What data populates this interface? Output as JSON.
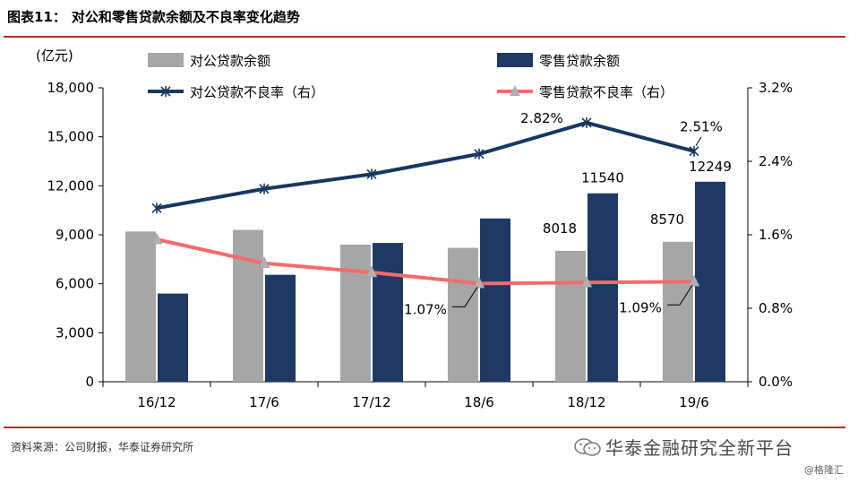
{
  "figure": {
    "label": "图表11：",
    "title": "对公和零售贷款余额及不良率变化趋势",
    "source": "资料来源：公司财报，华泰证券研究所",
    "brand": "华泰金融研究全新平台",
    "watermark": "@格隆汇"
  },
  "chart_data": {
    "type": "bar",
    "categories": [
      "16/12",
      "17/6",
      "17/12",
      "18/6",
      "18/12",
      "19/6"
    ],
    "left_axis": {
      "unit_label": "(亿元)",
      "min": 0,
      "max": 18000,
      "ticks": [
        "0",
        "3,000",
        "6,000",
        "9,000",
        "12,000",
        "15,000",
        "18,000"
      ]
    },
    "right_axis": {
      "min": 0,
      "max": 3.2,
      "ticks": [
        "0.0%",
        "0.8%",
        "1.6%",
        "2.4%",
        "3.2%"
      ]
    },
    "series": [
      {
        "name": "对公贷款余额",
        "type": "bar",
        "axis": "left",
        "color": "#a6a6a6",
        "values": [
          9200,
          9300,
          8400,
          8200,
          8018,
          8570
        ]
      },
      {
        "name": "零售贷款余额",
        "type": "bar",
        "axis": "left",
        "color": "#1f3864",
        "values": [
          5400,
          6550,
          8500,
          10000,
          11540,
          12249
        ]
      },
      {
        "name": "对公贷款不良率（右）",
        "type": "line",
        "axis": "right",
        "color": "#17375e",
        "marker": "star",
        "values": [
          1.89,
          2.1,
          2.26,
          2.48,
          2.82,
          2.51
        ]
      },
      {
        "name": "零售贷款不良率（右）",
        "type": "line",
        "axis": "right",
        "color": "#f36b6b",
        "marker": "triangle",
        "values": [
          1.55,
          1.29,
          1.19,
          1.07,
          1.08,
          1.09
        ]
      }
    ],
    "data_labels": [
      {
        "text": "8018",
        "series": 0,
        "index": 4
      },
      {
        "text": "11540",
        "series": 1,
        "index": 4
      },
      {
        "text": "8570",
        "series": 0,
        "index": 5
      },
      {
        "text": "12249",
        "series": 1,
        "index": 5
      },
      {
        "text": "2.82%",
        "series": 2,
        "index": 4
      },
      {
        "text": "2.51%",
        "series": 2,
        "index": 5
      },
      {
        "text": "1.07%",
        "series": 3,
        "index": 3
      },
      {
        "text": "1.09%",
        "series": 3,
        "index": 5
      }
    ],
    "legend_placement": "top",
    "grid": false
  }
}
